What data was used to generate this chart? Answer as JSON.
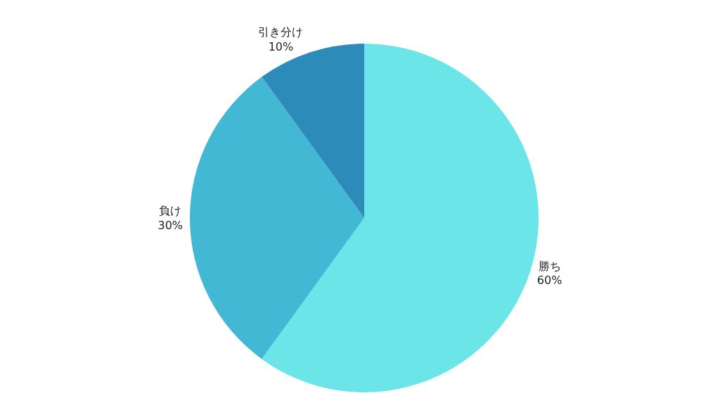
{
  "chart_data": {
    "type": "pie",
    "categories": [
      "勝ち",
      "負け",
      "引き分け"
    ],
    "values": [
      60,
      30,
      10
    ],
    "value_labels": [
      "60%",
      "30%",
      "10%"
    ],
    "colors": [
      "#6ce5e8",
      "#42b8d5",
      "#2d8bba"
    ],
    "legend": false
  }
}
